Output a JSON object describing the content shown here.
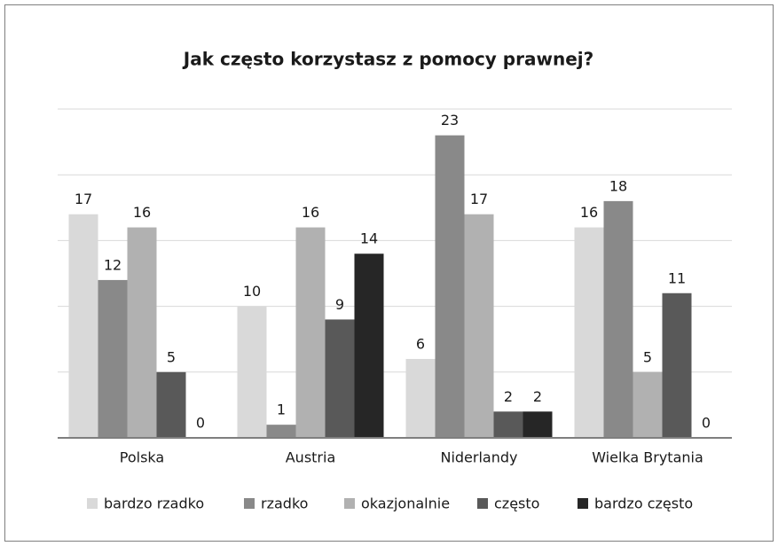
{
  "chart_data": {
    "type": "bar",
    "title": "Jak często korzystasz z pomocy prawnej?",
    "categories": [
      "Polska",
      "Austria",
      "Niderlandy",
      "Wielka Brytania"
    ],
    "series": [
      {
        "name": "bardzo rzadko",
        "color": "#d9d9d9",
        "values": [
          17,
          10,
          6,
          16
        ]
      },
      {
        "name": "rzadko",
        "color": "#898989",
        "values": [
          12,
          1,
          23,
          18
        ]
      },
      {
        "name": "okazjonalnie",
        "color": "#b1b1b1",
        "values": [
          16,
          16,
          17,
          5
        ]
      },
      {
        "name": "często",
        "color": "#595959",
        "values": [
          5,
          9,
          2,
          11
        ]
      },
      {
        "name": "bardzo często",
        "color": "#262626",
        "values": [
          0,
          14,
          2,
          0
        ]
      }
    ],
    "ylim": [
      0,
      25
    ],
    "yticks": [
      0,
      5,
      10,
      15,
      20,
      25
    ],
    "grid": true,
    "legend": "bottom"
  }
}
